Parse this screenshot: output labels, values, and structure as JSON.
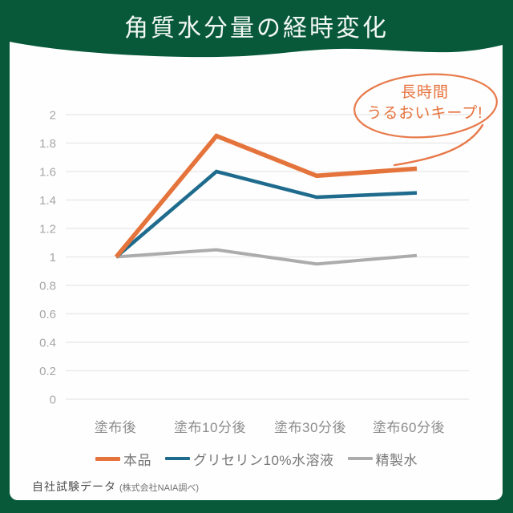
{
  "header": {
    "title": "角質水分量の経時変化"
  },
  "annotation": {
    "line1": "長時間",
    "line2": "うるおいキープ!"
  },
  "footnote": {
    "main": "自社試験データ",
    "sub": "(株式会社NAIA調べ)"
  },
  "colors": {
    "header_green": "#07593A",
    "panel_white": "#FDFEFD",
    "product_orange": "#E5743C",
    "glycerin_blue": "#1F6B8D",
    "water_gray": "#ACACAC",
    "annotation_orange": "#E8794A",
    "gridline_gray": "#EAEAEA"
  },
  "chart_data": {
    "type": "line",
    "title": "角質水分量の経時変化",
    "categories": [
      "塗布後",
      "塗布10分後",
      "塗布30分後",
      "塗布60分後"
    ],
    "series": [
      {
        "name": "本品",
        "color": "#E5743C",
        "values": [
          1.0,
          1.85,
          1.57,
          1.62
        ]
      },
      {
        "name": "グリセリン10%水溶液",
        "color": "#1F6B8D",
        "values": [
          1.0,
          1.6,
          1.42,
          1.45
        ]
      },
      {
        "name": "精製水",
        "color": "#ACACAC",
        "values": [
          1.0,
          1.05,
          0.95,
          1.01
        ]
      }
    ],
    "xlabel": "",
    "ylabel": "",
    "ylim": [
      0,
      2
    ],
    "yticks": [
      "0",
      "0.2",
      "0.4",
      "0.6",
      "0.8",
      "1",
      "1.2",
      "1.4",
      "1.6",
      "1.8",
      "2"
    ],
    "grid": true,
    "legend_position": "bottom",
    "annotation_text": "長時間うるおいキープ!",
    "source_note": "自社試験データ (株式会社NAIA調べ)"
  }
}
